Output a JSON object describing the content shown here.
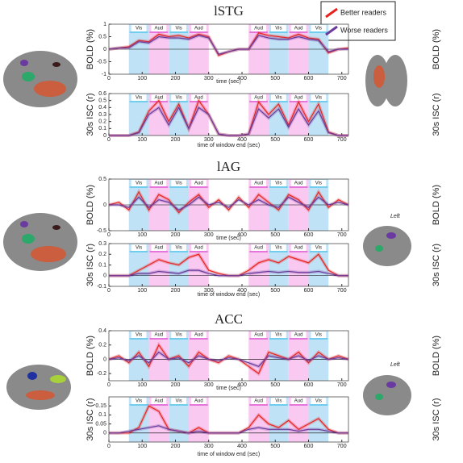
{
  "chart_data": [
    {
      "type": "line",
      "title": "lSTG",
      "title_color": "#a3203e",
      "ylabel": "BOLD (%)",
      "xlabel": "time (sec)",
      "xlim": [
        0,
        720
      ],
      "xticks": [
        0,
        100,
        200,
        300,
        400,
        500,
        600,
        700
      ],
      "ylim": [
        -1,
        1
      ],
      "yticks": [
        -1,
        -0.5,
        0,
        0.5,
        1
      ],
      "x": [
        0,
        30,
        60,
        90,
        120,
        150,
        180,
        210,
        240,
        270,
        300,
        330,
        360,
        390,
        420,
        450,
        480,
        510,
        540,
        570,
        600,
        630,
        660,
        690,
        720
      ],
      "series": [
        {
          "name": "Better readers",
          "color": "#e8231f",
          "values": [
            0,
            0.05,
            0.1,
            0.35,
            0.3,
            0.6,
            0.5,
            0.55,
            0.45,
            0.6,
            0.5,
            -0.25,
            -0.1,
            0,
            0,
            0.65,
            0.55,
            0.5,
            0.45,
            0.6,
            0.45,
            0.4,
            -0.15,
            0,
            0.05
          ]
        },
        {
          "name": "Worse readers",
          "color": "#6a3a9a",
          "values": [
            0,
            0.05,
            0.05,
            0.3,
            0.25,
            0.5,
            0.45,
            0.45,
            0.4,
            0.55,
            0.45,
            -0.2,
            -0.1,
            0,
            0,
            0.55,
            0.45,
            0.4,
            0.4,
            0.5,
            0.4,
            0.35,
            -0.1,
            0,
            0
          ]
        }
      ]
    },
    {
      "type": "line",
      "ylabel": "30s ISC (r)",
      "xlabel": "time of window end (sec)",
      "xlim": [
        0,
        720
      ],
      "xticks": [
        0,
        100,
        200,
        300,
        400,
        500,
        600,
        700
      ],
      "ylim": [
        0,
        0.6
      ],
      "yticks": [
        0,
        0.1,
        0.2,
        0.3,
        0.4,
        0.5,
        0.6
      ],
      "x": [
        0,
        30,
        60,
        90,
        120,
        150,
        180,
        210,
        240,
        270,
        300,
        330,
        360,
        390,
        420,
        450,
        480,
        510,
        540,
        570,
        600,
        630,
        660,
        690,
        720
      ],
      "series": [
        {
          "name": "Better readers",
          "color": "#e8231f",
          "values": [
            0,
            0,
            0,
            0.05,
            0.35,
            0.5,
            0.2,
            0.45,
            0.1,
            0.5,
            0.3,
            0.02,
            0,
            0,
            0.02,
            0.48,
            0.3,
            0.45,
            0.15,
            0.48,
            0.2,
            0.45,
            0.05,
            0,
            0
          ]
        },
        {
          "name": "Worse readers",
          "color": "#6a3a9a",
          "values": [
            0,
            0,
            0,
            0.04,
            0.3,
            0.4,
            0.15,
            0.4,
            0.1,
            0.4,
            0.3,
            0.02,
            0,
            0,
            0.02,
            0.38,
            0.25,
            0.38,
            0.12,
            0.38,
            0.15,
            0.35,
            0.04,
            0,
            0
          ]
        }
      ]
    },
    {
      "type": "line",
      "title": "lAG",
      "title_color": "#8a8a2a",
      "ylabel": "BOLD (%)",
      "xlabel": "time (sec)",
      "xlim": [
        0,
        720
      ],
      "xticks": [
        0,
        100,
        200,
        300,
        400,
        500,
        600,
        700
      ],
      "ylim": [
        -0.5,
        0.5
      ],
      "yticks": [
        -0.5,
        0,
        0.5
      ],
      "x": [
        0,
        30,
        60,
        90,
        120,
        150,
        180,
        210,
        240,
        270,
        300,
        330,
        360,
        390,
        420,
        450,
        480,
        510,
        540,
        570,
        600,
        630,
        660,
        690,
        720
      ],
      "series": [
        {
          "name": "Better readers",
          "color": "#e8231f",
          "values": [
            0,
            0.05,
            -0.1,
            0.25,
            -0.1,
            0.2,
            0.1,
            -0.15,
            0.05,
            0.2,
            -0.05,
            0.1,
            -0.1,
            0.15,
            -0.05,
            0.2,
            0.05,
            -0.1,
            0.2,
            0.1,
            -0.1,
            0.25,
            -0.05,
            0.1,
            0
          ]
        },
        {
          "name": "Worse readers",
          "color": "#6a3a9a",
          "values": [
            0,
            0,
            -0.05,
            0.15,
            -0.05,
            0.1,
            0.05,
            -0.1,
            0,
            0.15,
            0,
            0.05,
            -0.05,
            0.1,
            0,
            0.1,
            0,
            -0.05,
            0.15,
            0.05,
            -0.05,
            0.15,
            0,
            0.05,
            0
          ]
        }
      ]
    },
    {
      "type": "line",
      "ylabel": "30s ISC (r)",
      "xlabel": "time of window end (sec)",
      "xlim": [
        0,
        720
      ],
      "xticks": [
        0,
        100,
        200,
        300,
        400,
        500,
        600,
        700
      ],
      "ylim": [
        -0.1,
        0.3
      ],
      "yticks": [
        -0.1,
        0,
        0.1,
        0.2,
        0.3
      ],
      "x": [
        0,
        30,
        60,
        90,
        120,
        150,
        180,
        210,
        240,
        270,
        300,
        330,
        360,
        390,
        420,
        450,
        480,
        510,
        540,
        570,
        600,
        630,
        660,
        690,
        720
      ],
      "series": [
        {
          "name": "Better readers",
          "color": "#e8231f",
          "values": [
            0,
            0,
            0,
            0.05,
            0.1,
            0.15,
            0.12,
            0.1,
            0.17,
            0.2,
            0.05,
            0.02,
            0,
            0,
            0.05,
            0.12,
            0.15,
            0.12,
            0.18,
            0.15,
            0.12,
            0.2,
            0.05,
            0,
            0
          ]
        },
        {
          "name": "Worse readers",
          "color": "#6a3a9a",
          "values": [
            0,
            0,
            0,
            0.02,
            0.02,
            0.04,
            0.03,
            0.02,
            0.05,
            0.05,
            0.02,
            0,
            0,
            0,
            0.02,
            0.03,
            0.04,
            0.03,
            0.04,
            0.03,
            0.03,
            0.04,
            0.02,
            0,
            0
          ]
        }
      ]
    },
    {
      "type": "line",
      "title": "ACC",
      "title_color": "#3cb43c",
      "ylabel": "BOLD (%)",
      "xlabel": "time (sec)",
      "xlim": [
        0,
        720
      ],
      "xticks": [
        0,
        100,
        200,
        300,
        400,
        500,
        600,
        700
      ],
      "ylim": [
        -0.3,
        0.4
      ],
      "yticks": [
        -0.2,
        0,
        0.2,
        0.4
      ],
      "x": [
        0,
        30,
        60,
        90,
        120,
        150,
        180,
        210,
        240,
        270,
        300,
        330,
        360,
        390,
        420,
        450,
        480,
        510,
        540,
        570,
        600,
        630,
        660,
        690,
        720
      ],
      "series": [
        {
          "name": "Better readers",
          "color": "#e8231f",
          "values": [
            0,
            0.05,
            -0.05,
            0.1,
            -0.1,
            0.2,
            0,
            0.05,
            -0.1,
            0.1,
            0,
            -0.05,
            0.05,
            0,
            -0.1,
            -0.2,
            0.1,
            0.05,
            0,
            0.1,
            -0.05,
            0.1,
            0,
            0.05,
            0
          ]
        },
        {
          "name": "Worse readers",
          "color": "#6a3a9a",
          "values": [
            0,
            0.02,
            -0.02,
            0.05,
            -0.05,
            0.1,
            0,
            0.02,
            -0.05,
            0.05,
            0,
            -0.02,
            0.02,
            0,
            -0.05,
            -0.1,
            0.05,
            0.02,
            0,
            0.05,
            -0.02,
            0.05,
            0,
            0.02,
            0
          ]
        }
      ]
    },
    {
      "type": "line",
      "ylabel": "30s ISC (r)",
      "xlabel": "time of window end (sec)",
      "xlim": [
        0,
        720
      ],
      "xticks": [
        0,
        100,
        200,
        300,
        400,
        500,
        600,
        700
      ],
      "ylim": [
        -0.05,
        0.2
      ],
      "yticks": [
        0,
        0.05,
        0.1,
        0.15
      ],
      "x": [
        0,
        30,
        60,
        90,
        120,
        150,
        180,
        210,
        240,
        270,
        300,
        330,
        360,
        390,
        420,
        450,
        480,
        510,
        540,
        570,
        600,
        630,
        660,
        690,
        720
      ],
      "series": [
        {
          "name": "Better readers",
          "color": "#e8231f",
          "values": [
            0,
            0,
            0,
            0.03,
            0.15,
            0.12,
            0.02,
            0.01,
            0,
            0.03,
            0,
            0,
            0,
            0,
            0.03,
            0.1,
            0.05,
            0.03,
            0.07,
            0.02,
            0.05,
            0.08,
            0.02,
            0,
            0
          ]
        },
        {
          "name": "Worse readers",
          "color": "#6a3a9a",
          "values": [
            0,
            0,
            0.01,
            0.02,
            0.03,
            0.04,
            0.02,
            0.01,
            0,
            0.01,
            0,
            0,
            0,
            0,
            0.02,
            0.03,
            0.02,
            0.02,
            0.02,
            0.01,
            0.02,
            0.02,
            0.01,
            0,
            0
          ]
        }
      ]
    }
  ],
  "blocks": [
    {
      "label": "Vis",
      "start": 60,
      "end": 120,
      "color": "#bfe2f6",
      "line": "#21b8e6"
    },
    {
      "label": "Aud",
      "start": 120,
      "end": 180,
      "color": "#f9c9f1",
      "line": "#d524c8"
    },
    {
      "label": "Vis",
      "start": 180,
      "end": 240,
      "color": "#bfe2f6",
      "line": "#21b8e6"
    },
    {
      "label": "Aud",
      "start": 240,
      "end": 300,
      "color": "#f9c9f1",
      "line": "#d524c8"
    },
    {
      "label": "Aud",
      "start": 420,
      "end": 480,
      "color": "#f9c9f1",
      "line": "#d524c8"
    },
    {
      "label": "Vis",
      "start": 480,
      "end": 540,
      "color": "#bfe2f6",
      "line": "#21b8e6"
    },
    {
      "label": "Aud",
      "start": 540,
      "end": 600,
      "color": "#f9c9f1",
      "line": "#d524c8"
    },
    {
      "label": "Vis",
      "start": 600,
      "end": 660,
      "color": "#bfe2f6",
      "line": "#21b8e6"
    }
  ],
  "brain_labels": [
    "Left",
    "Left"
  ]
}
